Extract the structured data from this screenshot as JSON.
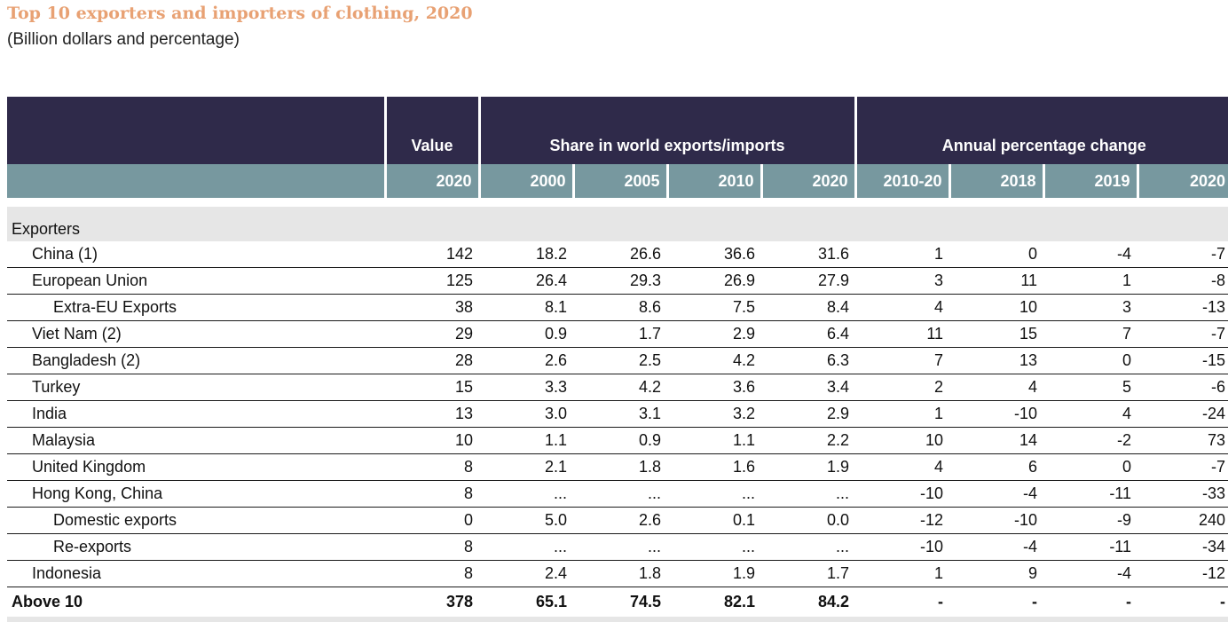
{
  "title": "Top 10 exporters and importers of clothing, 2020",
  "subtitle": "(Billion dollars and percentage)",
  "table": {
    "group_headers": [
      "Value",
      "Share in world exports/imports",
      "Annual percentage change"
    ],
    "year_headers": [
      "2020",
      "2000",
      "2005",
      "2010",
      "2020",
      "2010-20",
      "2018",
      "2019",
      "2020"
    ],
    "section_label": "Exporters",
    "rows": [
      {
        "label": "China (1)",
        "level": 1,
        "values": [
          "142",
          "18.2",
          "26.6",
          "36.6",
          "31.6",
          "1",
          "0",
          "-4",
          "-7"
        ]
      },
      {
        "label": "European Union",
        "level": 1,
        "values": [
          "125",
          "26.4",
          "29.3",
          "26.9",
          "27.9",
          "3",
          "11",
          "1",
          "-8"
        ]
      },
      {
        "label": "Extra-EU Exports",
        "level": 2,
        "values": [
          "38",
          "8.1",
          "8.6",
          "7.5",
          "8.4",
          "4",
          "10",
          "3",
          "-13"
        ]
      },
      {
        "label": "Viet Nam (2)",
        "level": 1,
        "values": [
          "29",
          "0.9",
          "1.7",
          "2.9",
          "6.4",
          "11",
          "15",
          "7",
          "-7"
        ]
      },
      {
        "label": "Bangladesh (2)",
        "level": 1,
        "values": [
          "28",
          "2.6",
          "2.5",
          "4.2",
          "6.3",
          "7",
          "13",
          "0",
          "-15"
        ]
      },
      {
        "label": "Turkey",
        "level": 1,
        "values": [
          "15",
          "3.3",
          "4.2",
          "3.6",
          "3.4",
          "2",
          "4",
          "5",
          "-6"
        ]
      },
      {
        "label": "India",
        "level": 1,
        "values": [
          "13",
          "3.0",
          "3.1",
          "3.2",
          "2.9",
          "1",
          "-10",
          "4",
          "-24"
        ]
      },
      {
        "label": "Malaysia",
        "level": 1,
        "values": [
          "10",
          "1.1",
          "0.9",
          "1.1",
          "2.2",
          "10",
          "14",
          "-2",
          "73"
        ]
      },
      {
        "label": "United Kingdom",
        "level": 1,
        "values": [
          "8",
          "2.1",
          "1.8",
          "1.6",
          "1.9",
          "4",
          "6",
          "0",
          "-7"
        ]
      },
      {
        "label": "Hong Kong, China",
        "level": 1,
        "values": [
          "8",
          "...",
          "...",
          "...",
          "...",
          "-10",
          "-4",
          "-11",
          "-33"
        ]
      },
      {
        "label": "Domestic exports",
        "level": 2,
        "values": [
          "0",
          "5.0",
          "2.6",
          "0.1",
          "0.0",
          "-12",
          "-10",
          "-9",
          "240"
        ]
      },
      {
        "label": "Re-exports",
        "level": 2,
        "values": [
          "8",
          "...",
          "...",
          "...",
          "...",
          "-10",
          "-4",
          "-11",
          "-34"
        ]
      },
      {
        "label": "Indonesia",
        "level": 1,
        "values": [
          "8",
          "2.4",
          "1.8",
          "1.9",
          "1.7",
          "1",
          "9",
          "-4",
          "-12"
        ]
      }
    ],
    "total": {
      "label": "Above 10",
      "values": [
        "378",
        "65.1",
        "74.5",
        "82.1",
        "84.2",
        "-",
        "-",
        "-",
        "-"
      ]
    }
  }
}
